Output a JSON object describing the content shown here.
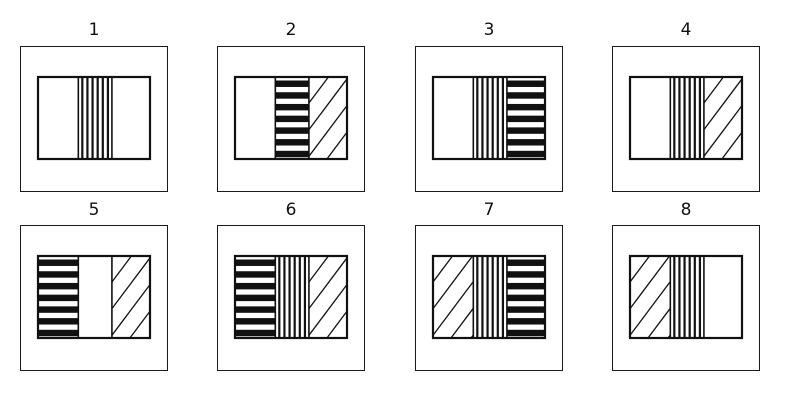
{
  "figure": {
    "stroke_color": "#111111",
    "background_color": "#ffffff",
    "options": [
      {
        "label": "1",
        "panels": [
          "blank",
          "vertical",
          "blank"
        ]
      },
      {
        "label": "2",
        "panels": [
          "blank",
          "horizontal",
          "diagonal"
        ]
      },
      {
        "label": "3",
        "panels": [
          "blank",
          "vertical",
          "horizontal"
        ]
      },
      {
        "label": "4",
        "panels": [
          "blank",
          "vertical",
          "diagonal"
        ]
      },
      {
        "label": "5",
        "panels": [
          "horizontal",
          "blank",
          "diagonal"
        ]
      },
      {
        "label": "6",
        "panels": [
          "horizontal",
          "vertical",
          "diagonal"
        ]
      },
      {
        "label": "7",
        "panels": [
          "diagonal",
          "vertical",
          "horizontal"
        ]
      },
      {
        "label": "8",
        "panels": [
          "diagonal",
          "vertical",
          "blank"
        ]
      }
    ]
  }
}
